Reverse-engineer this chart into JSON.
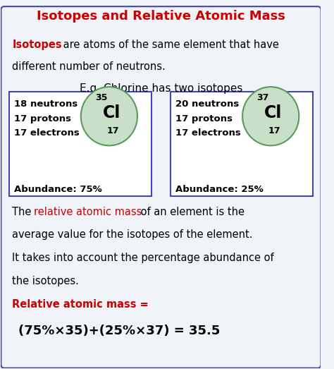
{
  "title": "Isotopes and Relative Atomic Mass",
  "title_color": "#cc0000",
  "bg_color": "#f0f4f8",
  "border_color": "#4444aa",
  "text_color": "#000000",
  "red_color": "#cc0000",
  "circle_fill": "#c8dfc8",
  "circle_edge": "#5a9a5a",
  "box_fill": "#ffffff",
  "box_edge": "#4444bb",
  "intro_line1_parts": [
    {
      "text": "Isotopes",
      "color": "#cc0000",
      "bold": true
    },
    {
      "text": " are atoms of the same element that have",
      "color": "#000000",
      "bold": false
    }
  ],
  "intro_line2": "different number of neutrons.",
  "eg_line": "E.g. Chlorine has two isotopes",
  "isotope1": {
    "neutrons": "18 neutrons",
    "protons": "17 protons",
    "electrons": "17 electrons",
    "mass_number": "35",
    "symbol": "Cl",
    "atomic_number": "17",
    "abundance": "Abundance: 75%"
  },
  "isotope2": {
    "neutrons": "20 neutrons",
    "protons": "17 protons",
    "electrons": "17 electrons",
    "mass_number": "37",
    "symbol": "Cl",
    "atomic_number": "17",
    "abundance": "Abundance: 25%"
  },
  "desc_line1_parts": [
    {
      "text": "The ",
      "color": "#000000"
    },
    {
      "text": "relative atomic mass",
      "color": "#cc0000"
    },
    {
      "text": " of an element is the",
      "color": "#000000"
    }
  ],
  "desc_line2": "average value for the isotopes of the element.",
  "desc_line3": "It takes into account the percentage abundance of",
  "desc_line4": "the isotopes.",
  "formula_label": "Relative atomic mass =",
  "formula_label_color": "#cc0000",
  "formula": "(75%×35)+(25%×37) = 35.5"
}
